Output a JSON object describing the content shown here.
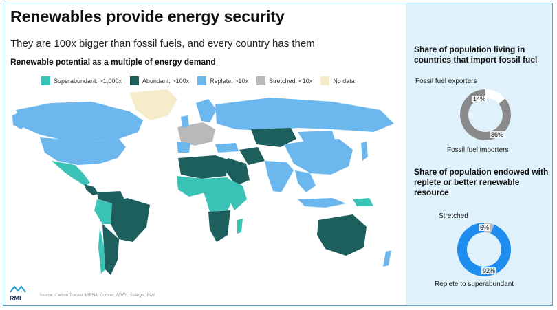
{
  "title": "Renewables provide energy security",
  "subtitle": "They are 100x bigger than fossil fuels, and every country has them",
  "map_title": "Renewable potential as a multiple of energy demand",
  "legend": [
    {
      "label": "Superabundant: >1,000x",
      "color": "#3cc3b7"
    },
    {
      "label": "Abundant: >100x",
      "color": "#1d5f5c"
    },
    {
      "label": "Replete: >10x",
      "color": "#6db7ef"
    },
    {
      "label": "Stretched: <10x",
      "color": "#b9b9b9"
    },
    {
      "label": "No data",
      "color": "#f6ecc9"
    }
  ],
  "source": "Source: Carbon Tracker, IRENA, Comtec, NREL, Solargis, RMI",
  "logo_text": "RMI",
  "panel1": {
    "title": "Share of population living in countries that import fossil fuel",
    "label_top": "Fossil fuel exporters",
    "label_bottom": "Fossil fuel importers"
  },
  "panel2": {
    "title": "Share of population endowed with replete or better renewable resource",
    "label_top": "Stretched",
    "label_bottom": "Replete to superabundant"
  },
  "chart_data": [
    {
      "type": "pie",
      "title": "Share of population living in countries that import fossil fuel",
      "categories": [
        "Fossil fuel exporters",
        "Fossil fuel importers"
      ],
      "values": [
        14,
        86
      ],
      "value_labels": [
        "14%",
        "86%"
      ],
      "colors": [
        "#ffffff",
        "#8a8a8a"
      ]
    },
    {
      "type": "pie",
      "title": "Share of population endowed with replete or better renewable resource",
      "categories": [
        "Stretched",
        "Replete to superabundant"
      ],
      "values": [
        6,
        92
      ],
      "value_labels": [
        "6%",
        "92%"
      ],
      "colors": [
        "#bdbdbd",
        "#1f8cf0"
      ]
    }
  ]
}
